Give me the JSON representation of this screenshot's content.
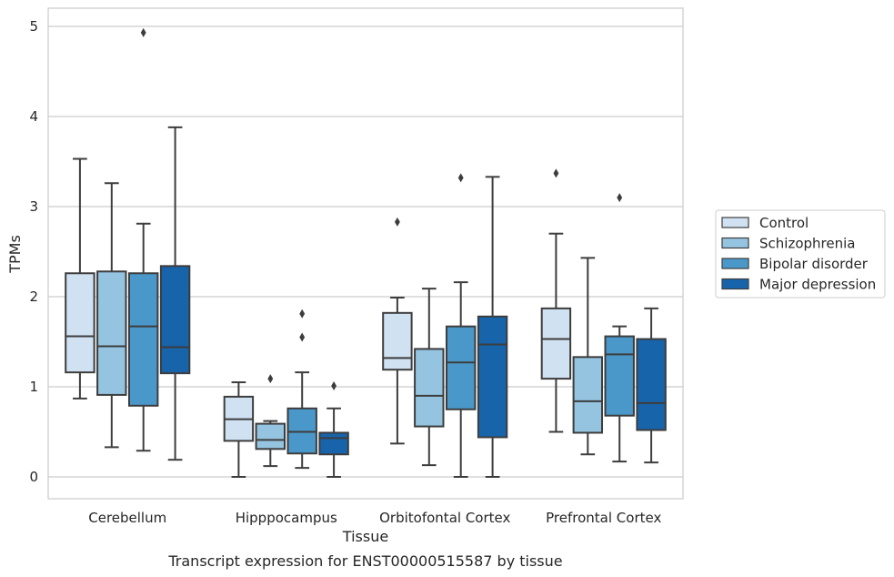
{
  "chart_data": {
    "type": "boxplot",
    "xlabel": "Tissue",
    "ylabel": "TPMs",
    "caption": "Transcript expression for ENST00000515587 by tissue",
    "ylim": [
      -0.25,
      5.2
    ],
    "yticks": [
      0,
      1,
      2,
      3,
      4,
      5
    ],
    "grid": "horizontal",
    "legend_position": "right",
    "categories": [
      "Cerebellum",
      "Hipppocampus",
      "Orbitofontal Cortex",
      "Prefrontal Cortex"
    ],
    "series": [
      {
        "name": "Control",
        "color": "#d0e1f2",
        "boxes": [
          {
            "whislo": 0.87,
            "q1": 1.16,
            "med": 1.56,
            "q3": 2.26,
            "whishi": 3.53,
            "fliers": []
          },
          {
            "whislo": 0.0,
            "q1": 0.4,
            "med": 0.64,
            "q3": 0.89,
            "whishi": 1.05,
            "fliers": []
          },
          {
            "whislo": 0.37,
            "q1": 1.19,
            "med": 1.32,
            "q3": 1.82,
            "whishi": 1.99,
            "fliers": [
              2.83
            ]
          },
          {
            "whislo": 0.5,
            "q1": 1.09,
            "med": 1.53,
            "q3": 1.87,
            "whishi": 2.7,
            "fliers": [
              3.37
            ]
          }
        ]
      },
      {
        "name": "Schizophrenia",
        "color": "#94c4df",
        "boxes": [
          {
            "whislo": 0.33,
            "q1": 0.91,
            "med": 1.45,
            "q3": 2.28,
            "whishi": 3.26,
            "fliers": []
          },
          {
            "whislo": 0.12,
            "q1": 0.31,
            "med": 0.41,
            "q3": 0.59,
            "whishi": 0.62,
            "fliers": [
              1.09
            ]
          },
          {
            "whislo": 0.13,
            "q1": 0.56,
            "med": 0.9,
            "q3": 1.42,
            "whishi": 2.09,
            "fliers": []
          },
          {
            "whislo": 0.25,
            "q1": 0.49,
            "med": 0.84,
            "q3": 1.33,
            "whishi": 2.43,
            "fliers": []
          }
        ]
      },
      {
        "name": "Bipolar disorder",
        "color": "#4a98c9",
        "boxes": [
          {
            "whislo": 0.29,
            "q1": 0.79,
            "med": 1.67,
            "q3": 2.26,
            "whishi": 2.81,
            "fliers": [
              4.93
            ]
          },
          {
            "whislo": 0.1,
            "q1": 0.26,
            "med": 0.5,
            "q3": 0.76,
            "whishi": 1.16,
            "fliers": [
              1.55,
              1.81
            ]
          },
          {
            "whislo": 0.0,
            "q1": 0.75,
            "med": 1.27,
            "q3": 1.67,
            "whishi": 2.16,
            "fliers": [
              3.32
            ]
          },
          {
            "whislo": 0.17,
            "q1": 0.68,
            "med": 1.36,
            "q3": 1.56,
            "whishi": 1.67,
            "fliers": [
              3.1
            ]
          }
        ]
      },
      {
        "name": "Major depression",
        "color": "#1764ab",
        "boxes": [
          {
            "whislo": 0.19,
            "q1": 1.15,
            "med": 1.44,
            "q3": 2.34,
            "whishi": 3.88,
            "fliers": []
          },
          {
            "whislo": 0.0,
            "q1": 0.25,
            "med": 0.43,
            "q3": 0.49,
            "whishi": 0.76,
            "fliers": [
              1.01
            ]
          },
          {
            "whislo": 0.0,
            "q1": 0.44,
            "med": 1.47,
            "q3": 1.78,
            "whishi": 3.33,
            "fliers": []
          },
          {
            "whislo": 0.16,
            "q1": 0.52,
            "med": 0.82,
            "q3": 1.53,
            "whishi": 1.87,
            "fliers": []
          }
        ]
      }
    ]
  }
}
